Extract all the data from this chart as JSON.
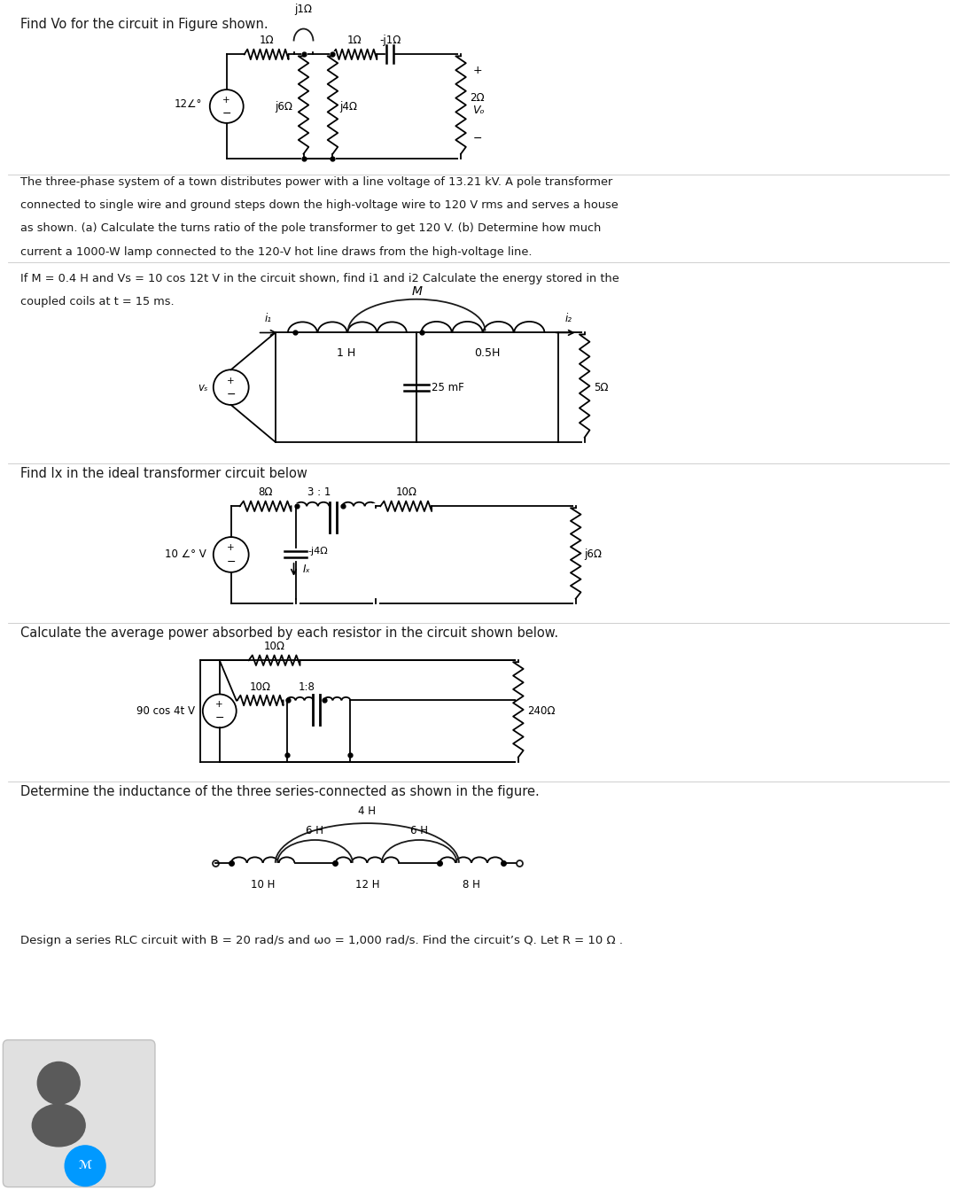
{
  "bg_color": "#ffffff",
  "text_color": "#1a1a1a",
  "line_color": "#1a1a1a",
  "title1": "Find Vo for the circuit in Figure shown.",
  "text2_l1": "The three-phase system of a town distributes power with a line voltage of 13.21 kV. A pole transformer",
  "text2_l2": "connected to single wire and ground steps down the high-voltage wire to 120 V rms and serves a house",
  "text2_l3": "as shown. (a) Calculate the turns ratio of the pole transformer to get 120 V. (b) Determine how much",
  "text2_l4": "current a 1000-W lamp connected to the 120-V hot line draws from the high-voltage line.",
  "text3_l1": "If M = 0.4 H and Vs = 10 cos 12t V in the circuit shown, find i1 and i2 Calculate the energy stored in the",
  "text3_l2": "coupled coils at t = 15 ms.",
  "title4": "Find Ix in the ideal transformer circuit below",
  "title5": "Calculate the average power absorbed by each resistor in the circuit shown below.",
  "title6": "Determine the inductance of the three series-connected as shown in the figure.",
  "title7": "Design a series RLC circuit with B = 20 rad/s and ωo = 1,000 rad/s. Find the circuit’s Q. Let R = 10 Ω ."
}
